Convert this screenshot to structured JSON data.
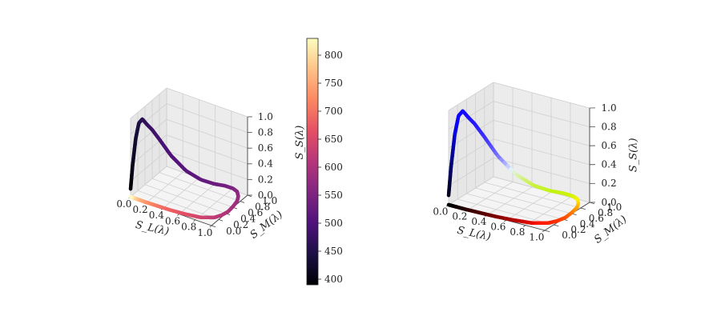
{
  "chart_data": [
    {
      "type": "line3d",
      "panel": "left",
      "xlabel": "S_L(λ)",
      "ylabel": "S_M(λ)",
      "zlabel": "",
      "xticks": [
        "0.0",
        "0.2",
        "0.4",
        "0.6",
        "0.8",
        "1.0"
      ],
      "yticks": [
        "0.0",
        "0.2",
        "0.4",
        "0.6",
        "0.8",
        "1.0"
      ],
      "zticks": [
        "0.0",
        "0.2",
        "0.4",
        "0.6",
        "0.8",
        "1.0"
      ],
      "xlim": [
        0,
        1
      ],
      "ylim": [
        0,
        1
      ],
      "zlim": [
        0,
        1
      ],
      "color_by": "wavelength",
      "colormap": "magma",
      "curve": {
        "lambda": [
          390,
          410,
          430,
          445,
          460,
          470,
          480,
          490,
          500,
          510,
          520,
          530,
          540,
          550,
          560,
          570,
          580,
          590,
          600,
          610,
          620,
          640,
          660,
          680,
          700,
          730,
          760,
          790,
          830
        ],
        "x": [
          0.0,
          0.02,
          0.05,
          0.08,
          0.11,
          0.15,
          0.19,
          0.25,
          0.33,
          0.44,
          0.55,
          0.65,
          0.74,
          0.82,
          0.88,
          0.93,
          0.97,
          0.99,
          1.0,
          0.98,
          0.94,
          0.82,
          0.65,
          0.48,
          0.33,
          0.18,
          0.09,
          0.04,
          0.0
        ],
        "y": [
          0.0,
          0.01,
          0.03,
          0.05,
          0.08,
          0.12,
          0.17,
          0.25,
          0.38,
          0.55,
          0.72,
          0.86,
          0.96,
          1.0,
          0.98,
          0.9,
          0.78,
          0.62,
          0.46,
          0.32,
          0.21,
          0.1,
          0.05,
          0.02,
          0.01,
          0.0,
          0.0,
          0.0,
          0.0
        ],
        "z": [
          0.1,
          0.4,
          0.75,
          0.95,
          1.0,
          0.93,
          0.86,
          0.72,
          0.5,
          0.28,
          0.14,
          0.07,
          0.04,
          0.02,
          0.01,
          0.0,
          0.0,
          0.0,
          0.0,
          0.0,
          0.0,
          0.0,
          0.0,
          0.0,
          0.0,
          0.0,
          0.0,
          0.0,
          0.0
        ]
      }
    },
    {
      "type": "colorbar",
      "label": "S_S(λ)",
      "colormap": "magma",
      "range": [
        390,
        830
      ],
      "ticks": [
        "400",
        "450",
        "500",
        "550",
        "600",
        "650",
        "700",
        "750",
        "800"
      ]
    },
    {
      "type": "line3d",
      "panel": "right",
      "xlabel": "S_L(λ)",
      "ylabel": "S_M(λ)",
      "zlabel": "S_S(λ)",
      "xticks": [
        "0.0",
        "0.2",
        "0.4",
        "0.6",
        "0.8",
        "1.0"
      ],
      "yticks": [
        "0.0",
        "0.2",
        "0.4",
        "0.6",
        "0.8",
        "1.0"
      ],
      "zticks": [
        "0.0",
        "0.2",
        "0.4",
        "0.6",
        "0.8",
        "1.0"
      ],
      "xlim": [
        0,
        1
      ],
      "ylim": [
        0,
        1
      ],
      "zlim": [
        0,
        1
      ],
      "color_by": "rgb",
      "curve_ref": "same spectral locus as left panel"
    }
  ]
}
